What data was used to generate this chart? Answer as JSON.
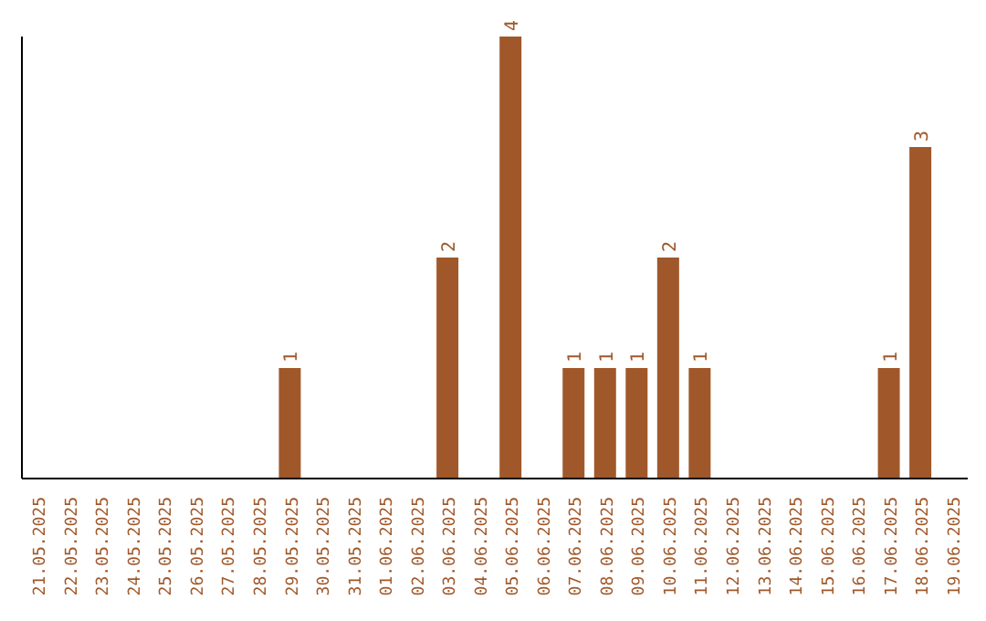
{
  "chart_data": {
    "type": "bar",
    "categories": [
      "21.05.2025",
      "22.05.2025",
      "23.05.2025",
      "24.05.2025",
      "25.05.2025",
      "26.05.2025",
      "27.05.2025",
      "28.05.2025",
      "29.05.2025",
      "30.05.2025",
      "31.05.2025",
      "01.06.2025",
      "02.06.2025",
      "03.06.2025",
      "04.06.2025",
      "05.06.2025",
      "06.06.2025",
      "07.06.2025",
      "08.06.2025",
      "09.06.2025",
      "10.06.2025",
      "11.06.2025",
      "12.06.2025",
      "13.06.2025",
      "14.06.2025",
      "15.06.2025",
      "16.06.2025",
      "17.06.2025",
      "18.06.2025",
      "19.06.2025"
    ],
    "values": [
      0,
      0,
      0,
      0,
      0,
      0,
      0,
      0,
      1,
      0,
      0,
      0,
      0,
      2,
      0,
      4,
      0,
      1,
      1,
      1,
      2,
      1,
      0,
      0,
      0,
      0,
      0,
      1,
      3,
      0
    ],
    "value_labels": [
      null,
      null,
      null,
      null,
      null,
      null,
      null,
      null,
      "1",
      null,
      null,
      null,
      null,
      "2",
      null,
      "4",
      null,
      "1",
      "1",
      "1",
      "2",
      "1",
      null,
      null,
      null,
      null,
      null,
      "1",
      "3",
      null
    ],
    "color": "#a0582a",
    "tick_labels": "x",
    "grid": false,
    "legend": false
  }
}
